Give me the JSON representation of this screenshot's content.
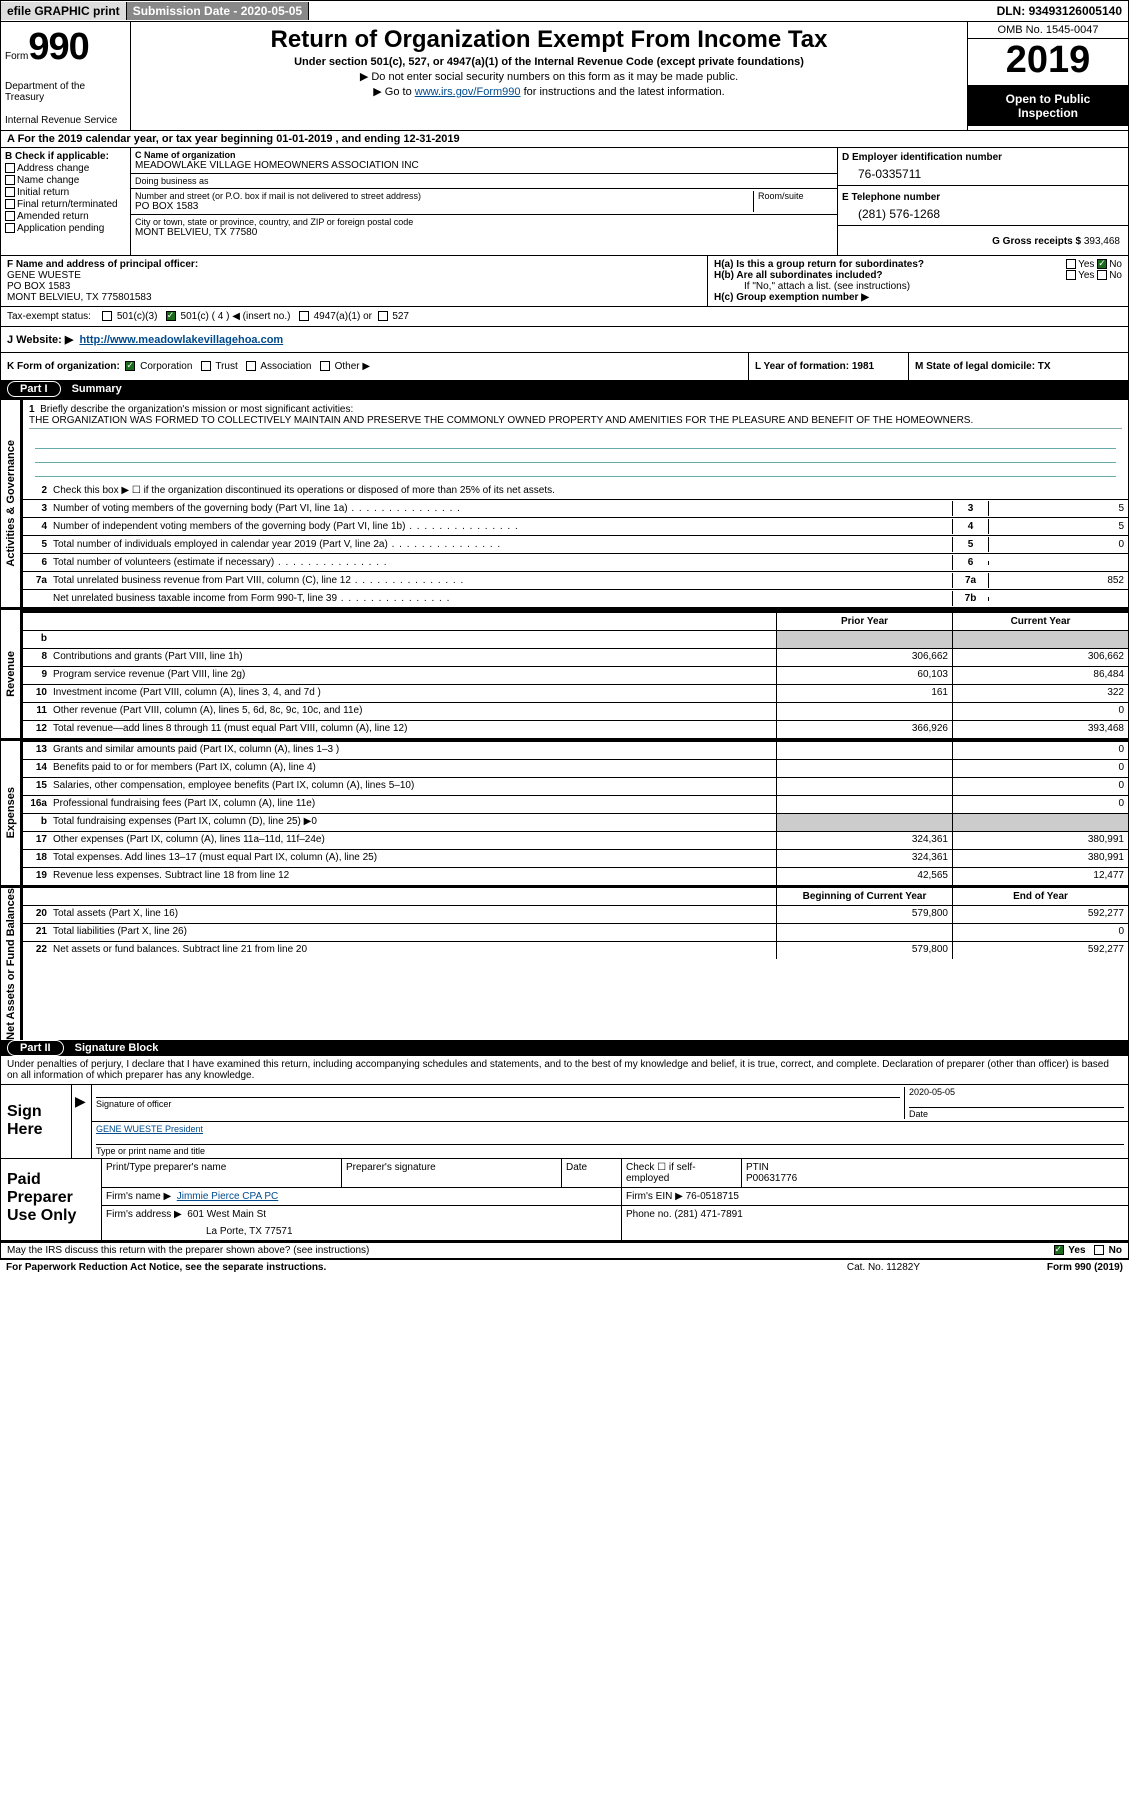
{
  "topbar": {
    "efile": "efile GRAPHIC print",
    "submission_label": "Submission Date - ",
    "submission_date": "2020-05-05",
    "dln_label": "DLN: ",
    "dln": "93493126005140"
  },
  "header": {
    "form_word": "Form",
    "form_num": "990",
    "dept1": "Department of the Treasury",
    "dept2": "Internal Revenue Service",
    "title": "Return of Organization Exempt From Income Tax",
    "sub": "Under section 501(c), 527, or 4947(a)(1) of the Internal Revenue Code (except private foundations)",
    "note1": "▶ Do not enter social security numbers on this form as it may be made public.",
    "note2_pre": "▶ Go to ",
    "note2_link": "www.irs.gov/Form990",
    "note2_post": " for instructions and the latest information.",
    "omb": "OMB No. 1545-0047",
    "year": "2019",
    "insp1": "Open to Public",
    "insp2": "Inspection"
  },
  "period": "A For the 2019 calendar year, or tax year beginning 01-01-2019     , and ending 12-31-2019",
  "boxB": {
    "title": "B Check if applicable:",
    "o1": "Address change",
    "o2": "Name change",
    "o3": "Initial return",
    "o4": "Final return/terminated",
    "o5": "Amended return",
    "o6": "Application pending"
  },
  "boxC": {
    "name_lbl": "C Name of organization",
    "name": "MEADOWLAKE VILLAGE HOMEOWNERS ASSOCIATION INC",
    "dba_lbl": "Doing business as",
    "dba": "",
    "addr_lbl": "Number and street (or P.O. box if mail is not delivered to street address)",
    "room_lbl": "Room/suite",
    "addr": "PO BOX 1583",
    "city_lbl": "City or town, state or province, country, and ZIP or foreign postal code",
    "city": "MONT BELVIEU, TX  77580"
  },
  "boxD": {
    "ein_lbl": "D Employer identification number",
    "ein": "76-0335711",
    "tel_lbl": "E Telephone number",
    "tel": "(281) 576-1268",
    "gross_lbl": "G Gross receipts $ ",
    "gross": "393,468"
  },
  "boxF": {
    "lbl": "F Name and address of principal officer:",
    "line1": "GENE WUESTE",
    "line2": "PO BOX 1583",
    "line3": "MONT BELVIEU, TX  775801583"
  },
  "boxH": {
    "ha": "H(a)  Is this a group return for subordinates?",
    "hb": "H(b)  Are all subordinates included?",
    "note": "If \"No,\" attach a list. (see instructions)",
    "hc": "H(c)  Group exemption number ▶",
    "yes": "Yes",
    "no": "No"
  },
  "tax": {
    "lbl": "Tax-exempt status:",
    "o1": "501(c)(3)",
    "o2": "501(c) ( 4 ) ◀ (insert no.)",
    "o3": "4947(a)(1) or",
    "o4": "527"
  },
  "rowJ": {
    "lbl": "J    Website: ▶",
    "url": "http://www.meadowlakevillagehoa.com"
  },
  "rowK": {
    "lbl": "K Form of organization:",
    "o1": "Corporation",
    "o2": "Trust",
    "o3": "Association",
    "o4": "Other ▶",
    "L": "L Year of formation: 1981",
    "M": "M State of legal domicile: TX"
  },
  "part1": {
    "pill": "Part I",
    "title": "Summary"
  },
  "mission": {
    "num": "1",
    "lbl": "Briefly describe the organization's mission or most significant activities:",
    "txt": "THE ORGANIZATION WAS FORMED TO COLLECTIVELY MAINTAIN AND PRESERVE THE COMMONLY OWNED PROPERTY AND AMENITIES FOR THE PLEASURE AND BENEFIT OF THE HOMEOWNERS."
  },
  "vtabs": {
    "ag": "Activities & Governance",
    "rev": "Revenue",
    "exp": "Expenses",
    "na": "Net Assets or Fund Balances"
  },
  "lines_ag": [
    {
      "n": "2",
      "d": "Check this box ▶ ☐  if the organization discontinued its operations or disposed of more than 25% of its net assets."
    },
    {
      "n": "3",
      "d": "Number of voting members of the governing body (Part VI, line 1a)",
      "box": "3",
      "v": "5"
    },
    {
      "n": "4",
      "d": "Number of independent voting members of the governing body (Part VI, line 1b)",
      "box": "4",
      "v": "5"
    },
    {
      "n": "5",
      "d": "Total number of individuals employed in calendar year 2019 (Part V, line 2a)",
      "box": "5",
      "v": "0"
    },
    {
      "n": "6",
      "d": "Total number of volunteers (estimate if necessary)",
      "box": "6",
      "v": ""
    },
    {
      "n": "7a",
      "d": "Total unrelated business revenue from Part VIII, column (C), line 12",
      "box": "7a",
      "v": "852"
    },
    {
      "n": "",
      "d": "Net unrelated business taxable income from Form 990-T, line 39",
      "box": "7b",
      "v": ""
    }
  ],
  "colhdr": {
    "py": "Prior Year",
    "cy": "Current Year"
  },
  "lines_rev": [
    {
      "n": "b",
      "d": "",
      "py": "",
      "cy": "",
      "shade": true
    },
    {
      "n": "8",
      "d": "Contributions and grants (Part VIII, line 1h)",
      "py": "306,662",
      "cy": "306,662"
    },
    {
      "n": "9",
      "d": "Program service revenue (Part VIII, line 2g)",
      "py": "60,103",
      "cy": "86,484"
    },
    {
      "n": "10",
      "d": "Investment income (Part VIII, column (A), lines 3, 4, and 7d )",
      "py": "161",
      "cy": "322"
    },
    {
      "n": "11",
      "d": "Other revenue (Part VIII, column (A), lines 5, 6d, 8c, 9c, 10c, and 11e)",
      "py": "",
      "cy": "0"
    },
    {
      "n": "12",
      "d": "Total revenue—add lines 8 through 11 (must equal Part VIII, column (A), line 12)",
      "py": "366,926",
      "cy": "393,468"
    }
  ],
  "lines_exp": [
    {
      "n": "13",
      "d": "Grants and similar amounts paid (Part IX, column (A), lines 1–3 )",
      "py": "",
      "cy": "0"
    },
    {
      "n": "14",
      "d": "Benefits paid to or for members (Part IX, column (A), line 4)",
      "py": "",
      "cy": "0"
    },
    {
      "n": "15",
      "d": "Salaries, other compensation, employee benefits (Part IX, column (A), lines 5–10)",
      "py": "",
      "cy": "0"
    },
    {
      "n": "16a",
      "d": "Professional fundraising fees (Part IX, column (A), line 11e)",
      "py": "",
      "cy": "0"
    },
    {
      "n": "b",
      "d": "Total fundraising expenses (Part IX, column (D), line 25) ▶0",
      "py": "",
      "cy": "",
      "shade": true
    },
    {
      "n": "17",
      "d": "Other expenses (Part IX, column (A), lines 11a–11d, 11f–24e)",
      "py": "324,361",
      "cy": "380,991"
    },
    {
      "n": "18",
      "d": "Total expenses. Add lines 13–17 (must equal Part IX, column (A), line 25)",
      "py": "324,361",
      "cy": "380,991"
    },
    {
      "n": "19",
      "d": "Revenue less expenses. Subtract line 18 from line 12",
      "py": "42,565",
      "cy": "12,477"
    }
  ],
  "colhdr2": {
    "py": "Beginning of Current Year",
    "cy": "End of Year"
  },
  "lines_na": [
    {
      "n": "20",
      "d": "Total assets (Part X, line 16)",
      "py": "579,800",
      "cy": "592,277"
    },
    {
      "n": "21",
      "d": "Total liabilities (Part X, line 26)",
      "py": "",
      "cy": "0"
    },
    {
      "n": "22",
      "d": "Net assets or fund balances. Subtract line 21 from line 20",
      "py": "579,800",
      "cy": "592,277"
    }
  ],
  "part2": {
    "pill": "Part II",
    "title": "Signature Block",
    "text": "Under penalties of perjury, I declare that I have examined this return, including accompanying schedules and statements, and to the best of my knowledge and belief, it is true, correct, and complete. Declaration of preparer (other than officer) is based on all information of which preparer has any knowledge."
  },
  "sign": {
    "here": "Sign Here",
    "sig_lbl": "Signature of officer",
    "date_lbl": "Date",
    "date": "2020-05-05",
    "name": "GENE WUESTE President",
    "name_lbl": "Type or print name and title"
  },
  "prep": {
    "here": "Paid Preparer Use Only",
    "c1": "Print/Type preparer's name",
    "c2": "Preparer's signature",
    "c3": "Date",
    "c4": "Check ☐ if self-employed",
    "c5_lbl": "PTIN",
    "c5": "P00631776",
    "firm_lbl": "Firm's name    ▶",
    "firm": "Jimmie Pierce CPA PC",
    "ein_lbl": "Firm's EIN ▶ ",
    "ein": "76-0518715",
    "addr_lbl": "Firm's address ▶",
    "addr1": "601 West Main St",
    "addr2": "La Porte, TX  77571",
    "ph_lbl": "Phone no. ",
    "ph": "(281) 471-7891"
  },
  "footer": {
    "discuss": "May the IRS discuss this return with the preparer shown above? (see instructions)",
    "yes": "Yes",
    "no": "No",
    "paperwork": "For Paperwork Reduction Act Notice, see the separate instructions.",
    "cat": "Cat. No. 11282Y",
    "form": "Form 990 (2019)"
  }
}
